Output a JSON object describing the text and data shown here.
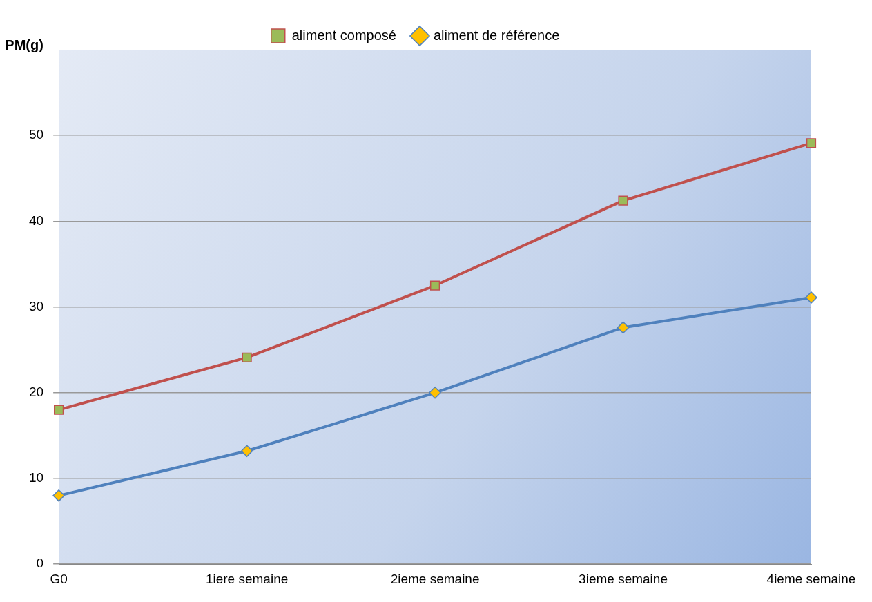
{
  "chart_data": {
    "type": "line",
    "ylabel": "PM(g)",
    "categories": [
      "G0",
      "1iere semaine",
      "2ieme semaine",
      "3ieme semaine",
      "4ieme semaine"
    ],
    "series": [
      {
        "name": "aliment composé",
        "color": "#c0504d",
        "marker": "square",
        "values": [
          18,
          24.1,
          32.5,
          42.4,
          49.1
        ]
      },
      {
        "name": "aliment de référence",
        "color": "#4f81bd",
        "marker": "diamond",
        "values": [
          8,
          13.2,
          20,
          27.6,
          31.1
        ]
      }
    ],
    "ylim": [
      0,
      60
    ],
    "yticks": [
      0,
      10,
      20,
      30,
      40,
      50
    ],
    "grid": "y",
    "legend": "top"
  }
}
